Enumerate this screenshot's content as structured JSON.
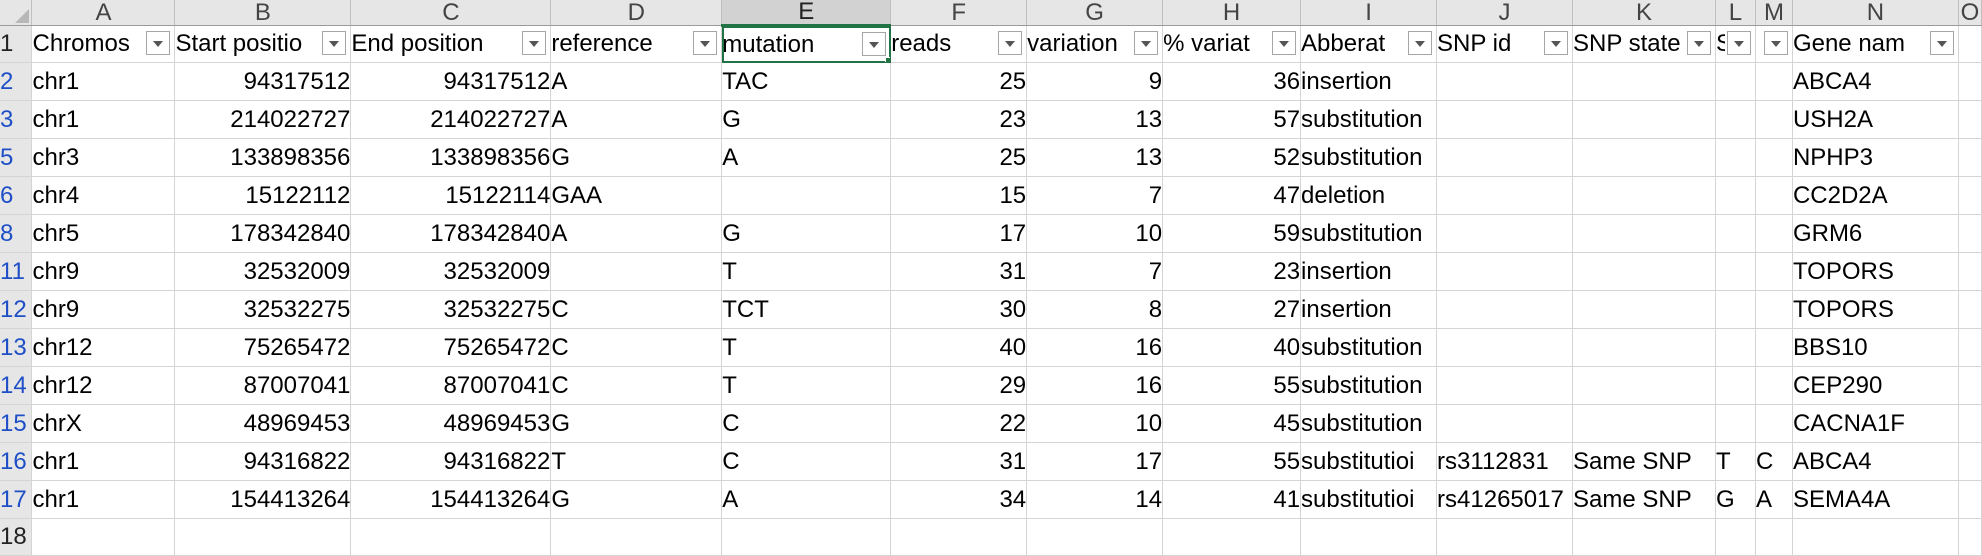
{
  "columns": [
    "A",
    "B",
    "C",
    "D",
    "E",
    "F",
    "G",
    "H",
    "I",
    "J",
    "K",
    "L",
    "M",
    "N",
    "O"
  ],
  "selected_column": "E",
  "header_row": {
    "row_number": "1",
    "cells": [
      "Chromos",
      "Start positio",
      "End position",
      "reference",
      "mutation",
      "reads",
      "variation",
      "% variat",
      "Abberat",
      "SNP id",
      "SNP state",
      "S",
      "",
      "Gene nam",
      ""
    ]
  },
  "rows": [
    {
      "row": "2",
      "chromosome": "chr1",
      "start": "94317512",
      "end": "94317512",
      "reference": "A",
      "mutation": "TAC",
      "reads": "25",
      "variation": "9",
      "pct": "36",
      "aberration": "insertion",
      "snp_id": "",
      "snp_state": "",
      "l": "",
      "m": "",
      "gene": "ABCA4"
    },
    {
      "row": "3",
      "chromosome": "chr1",
      "start": "214022727",
      "end": "214022727",
      "reference": "A",
      "mutation": "G",
      "reads": "23",
      "variation": "13",
      "pct": "57",
      "aberration": "substitution",
      "snp_id": "",
      "snp_state": "",
      "l": "",
      "m": "",
      "gene": "USH2A"
    },
    {
      "row": "5",
      "chromosome": "chr3",
      "start": "133898356",
      "end": "133898356",
      "reference": "G",
      "mutation": "A",
      "reads": "25",
      "variation": "13",
      "pct": "52",
      "aberration": "substitution",
      "snp_id": "",
      "snp_state": "",
      "l": "",
      "m": "",
      "gene": "NPHP3"
    },
    {
      "row": "6",
      "chromosome": "chr4",
      "start": "15122112",
      "end": "15122114",
      "reference": "GAA",
      "mutation": "",
      "reads": "15",
      "variation": "7",
      "pct": "47",
      "aberration": "deletion",
      "snp_id": "",
      "snp_state": "",
      "l": "",
      "m": "",
      "gene": "CC2D2A"
    },
    {
      "row": "8",
      "chromosome": "chr5",
      "start": "178342840",
      "end": "178342840",
      "reference": "A",
      "mutation": "G",
      "reads": "17",
      "variation": "10",
      "pct": "59",
      "aberration": "substitution",
      "snp_id": "",
      "snp_state": "",
      "l": "",
      "m": "",
      "gene": "GRM6"
    },
    {
      "row": "11",
      "chromosome": "chr9",
      "start": "32532009",
      "end": "32532009",
      "reference": "",
      "mutation": "T",
      "reads": "31",
      "variation": "7",
      "pct": "23",
      "aberration": "insertion",
      "snp_id": "",
      "snp_state": "",
      "l": "",
      "m": "",
      "gene": "TOPORS"
    },
    {
      "row": "12",
      "chromosome": "chr9",
      "start": "32532275",
      "end": "32532275",
      "reference": "C",
      "mutation": "TCT",
      "reads": "30",
      "variation": "8",
      "pct": "27",
      "aberration": "insertion",
      "snp_id": "",
      "snp_state": "",
      "l": "",
      "m": "",
      "gene": "TOPORS"
    },
    {
      "row": "13",
      "chromosome": "chr12",
      "start": "75265472",
      "end": "75265472",
      "reference": "C",
      "mutation": "T",
      "reads": "40",
      "variation": "16",
      "pct": "40",
      "aberration": "substitution",
      "snp_id": "",
      "snp_state": "",
      "l": "",
      "m": "",
      "gene": "BBS10"
    },
    {
      "row": "14",
      "chromosome": "chr12",
      "start": "87007041",
      "end": "87007041",
      "reference": "C",
      "mutation": "T",
      "reads": "29",
      "variation": "16",
      "pct": "55",
      "aberration": "substitution",
      "snp_id": "",
      "snp_state": "",
      "l": "",
      "m": "",
      "gene": "CEP290"
    },
    {
      "row": "15",
      "chromosome": "chrX",
      "start": "48969453",
      "end": "48969453",
      "reference": "G",
      "mutation": "C",
      "reads": "22",
      "variation": "10",
      "pct": "45",
      "aberration": "substitution",
      "snp_id": "",
      "snp_state": "",
      "l": "",
      "m": "",
      "gene": "CACNA1F"
    },
    {
      "row": "16",
      "chromosome": "chr1",
      "start": "94316822",
      "end": "94316822",
      "reference": "T",
      "mutation": "C",
      "reads": "31",
      "variation": "17",
      "pct": "55",
      "aberration": "substitutioi",
      "snp_id": "rs3112831",
      "snp_state": "Same SNP",
      "l": "T",
      "m": "C",
      "gene": "ABCA4"
    },
    {
      "row": "17",
      "chromosome": "chr1",
      "start": "154413264",
      "end": "154413264",
      "reference": "G",
      "mutation": "A",
      "reads": "34",
      "variation": "14",
      "pct": "41",
      "aberration": "substitutioi",
      "snp_id": "rs41265017",
      "snp_state": "Same SNP",
      "l": "G",
      "m": "A",
      "gene": "SEMA4A"
    }
  ],
  "trailing_row_number": "18",
  "colors": {
    "selection": "#217346",
    "row_number_filtered": "#1f4fc7"
  }
}
